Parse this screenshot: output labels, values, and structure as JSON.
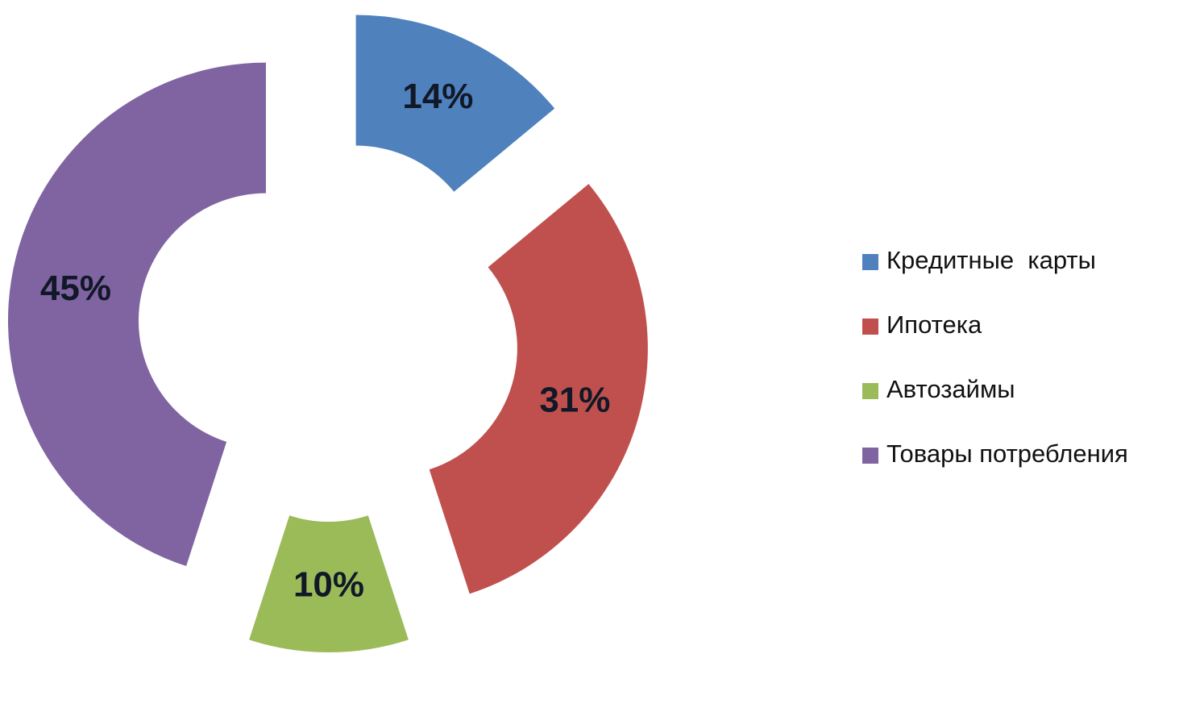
{
  "chart_data": {
    "type": "donut",
    "categories": [
      "Кредитные  карты",
      "Ипотека",
      "Автозаймы",
      "Товары потребления"
    ],
    "values": [
      14,
      31,
      10,
      45
    ],
    "value_labels": [
      "14%",
      "31%",
      "10%",
      "45%"
    ],
    "colors": [
      "#4f81bd",
      "#c0504d",
      "#9bbb59",
      "#8064a2"
    ],
    "exploded": true,
    "legend": "right"
  }
}
